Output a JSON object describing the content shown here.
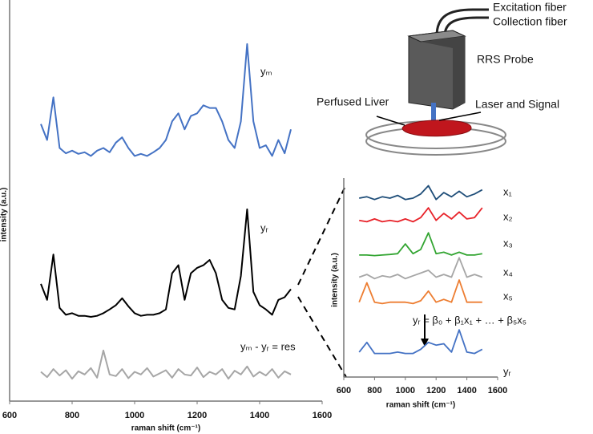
{
  "chart_data": [
    {
      "type": "line",
      "x": [
        700,
        720,
        740,
        760,
        780,
        800,
        820,
        840,
        860,
        880,
        900,
        920,
        940,
        960,
        980,
        1000,
        1020,
        1040,
        1060,
        1080,
        1100,
        1120,
        1140,
        1160,
        1180,
        1200,
        1220,
        1240,
        1260,
        1280,
        1300,
        1320,
        1340,
        1360,
        1380,
        1400,
        1420,
        1440,
        1460,
        1480,
        1500
      ],
      "series": [
        {
          "name": "yₘ",
          "color": "#4472c4",
          "values": [
            5.2,
            4.9,
            5.7,
            4.75,
            4.65,
            4.7,
            4.64,
            4.67,
            4.6,
            4.7,
            4.75,
            4.67,
            4.85,
            4.95,
            4.75,
            4.6,
            4.64,
            4.6,
            4.67,
            4.75,
            4.9,
            5.25,
            5.4,
            5.1,
            5.35,
            5.4,
            5.55,
            5.5,
            5.5,
            5.25,
            4.9,
            4.75,
            5.25,
            6.7,
            5.25,
            4.75,
            4.8,
            4.6,
            4.9,
            4.65,
            5.1
          ]
        },
        {
          "name": "yᵣ",
          "color": "#000000",
          "values": [
            2.2,
            1.9,
            2.75,
            1.75,
            1.62,
            1.65,
            1.6,
            1.6,
            1.58,
            1.6,
            1.65,
            1.72,
            1.8,
            1.93,
            1.78,
            1.65,
            1.6,
            1.62,
            1.62,
            1.65,
            1.72,
            2.4,
            2.55,
            1.9,
            2.4,
            2.5,
            2.55,
            2.65,
            2.4,
            1.9,
            1.75,
            1.72,
            2.35,
            3.6,
            2.05,
            1.8,
            1.72,
            1.62,
            1.9,
            1.95,
            2.1
          ]
        },
        {
          "name": "yₘ - yᵣ = res",
          "color": "#a6a6a6",
          "values": [
            0.55,
            0.45,
            0.6,
            0.48,
            0.58,
            0.42,
            0.56,
            0.5,
            0.62,
            0.44,
            0.95,
            0.5,
            0.47,
            0.6,
            0.43,
            0.55,
            0.5,
            0.62,
            0.46,
            0.52,
            0.58,
            0.44,
            0.6,
            0.5,
            0.48,
            0.63,
            0.45,
            0.55,
            0.5,
            0.6,
            0.42,
            0.57,
            0.5,
            0.65,
            0.46,
            0.55,
            0.48,
            0.6,
            0.44,
            0.56,
            0.5
          ]
        }
      ],
      "xlim": [
        600,
        1600
      ],
      "xticks": [
        600,
        800,
        1000,
        1200,
        1400,
        1600
      ],
      "ylim": [
        0,
        7
      ],
      "xlabel": "raman shift (cm⁻¹)",
      "ylabel": "intensity (a.u.)"
    },
    {
      "type": "line",
      "x": [
        700,
        750,
        800,
        850,
        900,
        950,
        1000,
        1050,
        1100,
        1150,
        1200,
        1250,
        1300,
        1350,
        1400,
        1450,
        1500
      ],
      "series": [
        {
          "name": "x₁",
          "color": "#1f4e79",
          "values": [
            6.45,
            6.5,
            6.4,
            6.5,
            6.45,
            6.55,
            6.4,
            6.45,
            6.6,
            6.9,
            6.4,
            6.65,
            6.5,
            6.7,
            6.5,
            6.6,
            6.75
          ]
        },
        {
          "name": "x₂",
          "color": "#e8232a",
          "values": [
            5.65,
            5.6,
            5.7,
            5.6,
            5.65,
            5.6,
            5.7,
            5.6,
            5.75,
            6.1,
            5.65,
            5.9,
            5.7,
            5.95,
            5.7,
            5.75,
            6.1
          ]
        },
        {
          "name": "x₃",
          "color": "#33a532",
          "values": [
            4.4,
            4.4,
            4.38,
            4.4,
            4.42,
            4.45,
            4.8,
            4.45,
            4.6,
            5.2,
            4.45,
            4.5,
            4.4,
            4.5,
            4.4,
            4.4,
            4.45
          ]
        },
        {
          "name": "x₄",
          "color": "#a6a6a6",
          "values": [
            3.6,
            3.7,
            3.55,
            3.65,
            3.6,
            3.7,
            3.55,
            3.65,
            3.75,
            3.85,
            3.6,
            3.7,
            3.6,
            4.3,
            3.6,
            3.7,
            3.6
          ]
        },
        {
          "name": "x₅",
          "color": "#ed7d31",
          "values": [
            2.7,
            3.4,
            2.7,
            2.65,
            2.7,
            2.7,
            2.7,
            2.65,
            2.75,
            3.1,
            2.7,
            2.8,
            2.7,
            3.5,
            2.7,
            2.7,
            2.7
          ]
        },
        {
          "name": "yᵣ",
          "color": "#4472c4",
          "values": [
            0.9,
            1.25,
            0.85,
            0.85,
            0.85,
            0.9,
            0.85,
            0.85,
            1.0,
            1.25,
            1.15,
            1.2,
            0.9,
            1.7,
            0.9,
            0.85,
            1.0
          ]
        }
      ],
      "xlim": [
        600,
        1600
      ],
      "xticks": [
        600,
        800,
        1000,
        1200,
        1400,
        1600
      ],
      "ylim": [
        0,
        7
      ],
      "xlabel": "raman shift (cm⁻¹)",
      "ylabel": "intensity (a.u.)",
      "annotation": "yᵣ = β₀ + β₁x₁ + … + β₅x₅"
    }
  ],
  "diagram": {
    "excitation_fiber": "Excitation fiber",
    "collection_fiber": "Collection fiber",
    "probe": "RRS Probe",
    "liver": "Perfused Liver",
    "laser": "Laser and Signal"
  }
}
